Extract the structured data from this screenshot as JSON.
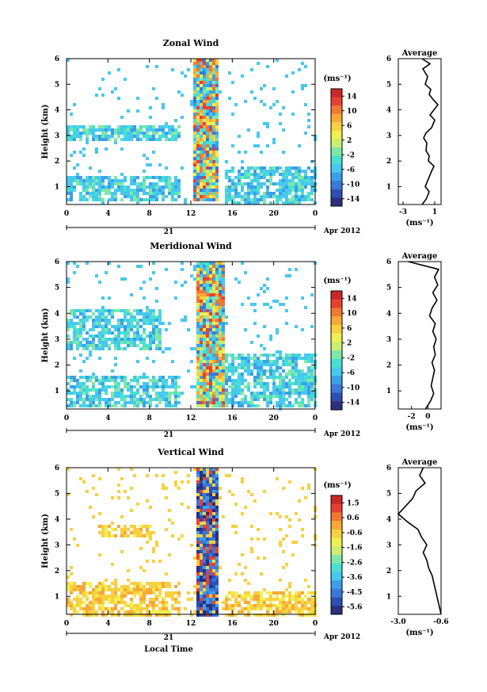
{
  "figure": {
    "date_label": "Apr 2012",
    "day_label": "21",
    "xlabel": "Local Time",
    "avg_title": "Average",
    "unit_label": "(ms⁻¹)"
  },
  "colors": {
    "palette": [
      "#2b2f7f",
      "#2f4fb0",
      "#3b78d8",
      "#3ba0e8",
      "#46c8f0",
      "#48e0d0",
      "#7fe8a8",
      "#c8f070",
      "#f0f050",
      "#f8d040",
      "#f8a838",
      "#f07830",
      "#e84030",
      "#c82828"
    ]
  },
  "chart_data": [
    {
      "type": "heatmap",
      "title": "Zonal Wind",
      "ylabel": "Height (km)",
      "x_ticks": [
        "0",
        "4",
        "8",
        "12",
        "16",
        "20",
        "0"
      ],
      "y_ticks": [
        "1",
        "2",
        "3",
        "4",
        "5",
        "6"
      ],
      "xlim": [
        0,
        24
      ],
      "ylim": [
        0.3,
        6.0
      ],
      "colorbar_ticks": [
        "14",
        "10",
        "6",
        "2",
        "-2",
        "-6",
        "-10",
        "-14"
      ],
      "colorbar_range": [
        -16,
        16
      ],
      "features": [
        {
          "x": [
            0,
            11
          ],
          "y": [
            0.5,
            1.5
          ],
          "level": "-2 to -6"
        },
        {
          "x": [
            0,
            11
          ],
          "y": [
            2.8,
            3.5
          ],
          "level": "-2 to -6"
        },
        {
          "x": [
            12,
            14.5
          ],
          "y": [
            0.5,
            6.0
          ],
          "level": "-6 to 14"
        },
        {
          "x": [
            15,
            24
          ],
          "y": [
            0.4,
            1.8
          ],
          "level": "-2 to 2"
        }
      ],
      "average": {
        "xlabel": "(ms⁻¹)",
        "x_ticks": [
          "-3",
          "1"
        ],
        "xlim": [
          -3.6,
          1.8
        ],
        "y": [
          0.3,
          0.5,
          0.8,
          1.0,
          1.3,
          1.6,
          1.8,
          2.0,
          2.2,
          2.4,
          2.7,
          2.9,
          3.1,
          3.3,
          3.6,
          3.8,
          4.0,
          4.2,
          4.4,
          4.6,
          4.8,
          5.0,
          5.3,
          5.6,
          5.8,
          6.0
        ],
        "values": [
          -0.6,
          -0.1,
          0.3,
          -0.2,
          0.2,
          0.6,
          0.9,
          0.2,
          0.3,
          -0.1,
          0.0,
          -0.4,
          -0.1,
          0.6,
          1.0,
          0.4,
          0.9,
          1.4,
          0.8,
          0.3,
          0.5,
          -0.2,
          0.1,
          -0.5,
          0.4,
          -0.6
        ]
      }
    },
    {
      "type": "heatmap",
      "title": "Meridional Wind",
      "ylabel": "Height (km)",
      "x_ticks": [
        "0",
        "4",
        "8",
        "12",
        "16",
        "20",
        "0"
      ],
      "y_ticks": [
        "1",
        "2",
        "3",
        "4",
        "5",
        "6"
      ],
      "xlim": [
        0,
        24
      ],
      "ylim": [
        0.3,
        6.0
      ],
      "colorbar_ticks": [
        "14",
        "10",
        "6",
        "2",
        "-2",
        "-6",
        "-10",
        "-14"
      ],
      "colorbar_range": [
        -16,
        16
      ],
      "features": [
        {
          "x": [
            0,
            11
          ],
          "y": [
            0.4,
            1.6
          ],
          "level": "-2 to 2"
        },
        {
          "x": [
            0,
            9
          ],
          "y": [
            2.6,
            4.2
          ],
          "level": "-2 to -6"
        },
        {
          "x": [
            12.5,
            15
          ],
          "y": [
            0.4,
            6.0
          ],
          "level": "-14 to 14"
        },
        {
          "x": [
            15,
            24
          ],
          "y": [
            0.4,
            2.5
          ],
          "level": "-2 to -6"
        }
      ],
      "average": {
        "xlabel": "(ms⁻¹)",
        "x_ticks": [
          "-2",
          "0"
        ],
        "xlim": [
          -3.6,
          1.6
        ],
        "y": [
          0.3,
          0.6,
          0.9,
          1.2,
          1.5,
          1.8,
          2.1,
          2.4,
          2.7,
          3.0,
          3.3,
          3.6,
          3.9,
          4.2,
          4.5,
          4.8,
          5.1,
          5.4,
          5.7,
          6.0
        ],
        "values": [
          -0.3,
          0.3,
          0.7,
          0.4,
          0.6,
          0.8,
          0.5,
          0.9,
          0.7,
          1.0,
          0.6,
          0.9,
          0.2,
          0.5,
          1.1,
          0.6,
          1.2,
          0.8,
          1.3,
          -2.4
        ]
      }
    },
    {
      "type": "heatmap",
      "title": "Vertical Wind",
      "ylabel": "Height (km)",
      "x_ticks": [
        "0",
        "4",
        "8",
        "12",
        "16",
        "20",
        "0"
      ],
      "y_ticks": [
        "1",
        "2",
        "3",
        "4",
        "5",
        "6"
      ],
      "xlim": [
        0,
        24
      ],
      "ylim": [
        0.3,
        6.0
      ],
      "colorbar_ticks": [
        "1.5",
        "0.6",
        "-0.6",
        "-1.6",
        "-2.6",
        "-3.6",
        "-4.5",
        "-5.6"
      ],
      "colorbar_range": [
        -6.0,
        2.0
      ],
      "features": [
        {
          "x": [
            0,
            11
          ],
          "y": [
            0.3,
            1.6
          ],
          "level": "-0.6 to 0.6"
        },
        {
          "x": [
            3,
            8
          ],
          "y": [
            3.4,
            3.8
          ],
          "level": "-0.6 to -1.6"
        },
        {
          "x": [
            12.5,
            14.5
          ],
          "y": [
            0.3,
            6.0
          ],
          "level": "-5.6 to 1.5"
        },
        {
          "x": [
            15,
            24
          ],
          "y": [
            0.3,
            1.2
          ],
          "level": "-0.6 to 0.6"
        }
      ],
      "average": {
        "xlabel": "(ms⁻¹)",
        "x_ticks": [
          "-3.0",
          "-0.6"
        ],
        "xlim": [
          -3.0,
          -0.6
        ],
        "y": [
          0.3,
          0.6,
          0.9,
          1.2,
          1.5,
          1.8,
          2.1,
          2.4,
          2.7,
          3.0,
          3.3,
          3.6,
          3.9,
          4.2,
          4.5,
          4.8,
          5.1,
          5.4,
          5.7,
          6.0
        ],
        "values": [
          -0.6,
          -0.7,
          -0.8,
          -0.9,
          -1.0,
          -1.1,
          -1.3,
          -1.4,
          -1.6,
          -1.4,
          -1.7,
          -1.9,
          -2.5,
          -3.0,
          -2.6,
          -2.2,
          -2.0,
          -1.5,
          -1.8,
          -1.6
        ]
      }
    }
  ]
}
